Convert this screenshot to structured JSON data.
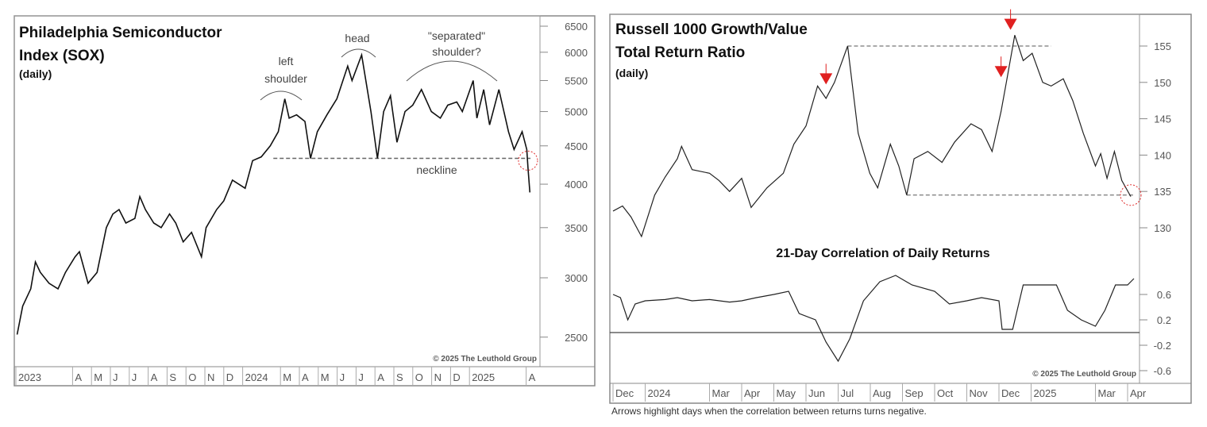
{
  "chart_data": [
    {
      "type": "line",
      "title": "Philadelphia Semiconductor Index (SOX)",
      "title_lines": [
        "Philadelphia Semiconductor",
        "Index (SOX)"
      ],
      "subtitle": "(daily)",
      "y_scale": "log",
      "ylim": [
        2300,
        6700
      ],
      "y_ticks": [
        2500,
        3000,
        3500,
        4000,
        4500,
        5000,
        5500,
        6000,
        6500
      ],
      "x_tick_labels": [
        "2023",
        "A",
        "M",
        "J",
        "J",
        "A",
        "S",
        "O",
        "N",
        "D",
        "2024",
        "M",
        "A",
        "M",
        "J",
        "J",
        "A",
        "S",
        "O",
        "N",
        "D",
        "2025",
        "A"
      ],
      "x_tick_months": [
        "2023-01",
        "2023-04",
        "2023-05",
        "2023-06",
        "2023-07",
        "2023-08",
        "2023-09",
        "2023-10",
        "2023-11",
        "2023-12",
        "2024-01",
        "2024-03",
        "2024-04",
        "2024-05",
        "2024-06",
        "2024-07",
        "2024-08",
        "2024-09",
        "2024-10",
        "2024-11",
        "2024-12",
        "2025-01",
        "2025-04"
      ],
      "grid": false,
      "neckline": {
        "value": 4330,
        "from": "2024-02-20",
        "to": "2025-04-08",
        "label": "neckline"
      },
      "annotations": [
        {
          "text_lines": [
            "left",
            "shoulder"
          ],
          "at": "2024-03-08"
        },
        {
          "text_lines": [
            "head"
          ],
          "at": "2024-07-10"
        },
        {
          "text_lines": [
            "\"separated\"",
            "shoulder?"
          ],
          "at": "2024-12-05"
        }
      ],
      "highlight_circle": {
        "date": "2025-04-04",
        "value": 4300,
        "color": "#e03030"
      },
      "copyright": "© 2025 The Leuthold Group",
      "series": [
        {
          "color": "#111111",
          "points": [
            [
              "2023-01-03",
              2520
            ],
            [
              "2023-01-12",
              2750
            ],
            [
              "2023-01-25",
              2900
            ],
            [
              "2023-02-02",
              3150
            ],
            [
              "2023-02-10",
              3050
            ],
            [
              "2023-02-24",
              2950
            ],
            [
              "2023-03-08",
              2900
            ],
            [
              "2023-03-20",
              3050
            ],
            [
              "2023-04-05",
              3200
            ],
            [
              "2023-04-12",
              3250
            ],
            [
              "2023-04-26",
              2950
            ],
            [
              "2023-05-10",
              3050
            ],
            [
              "2023-05-25",
              3500
            ],
            [
              "2023-06-05",
              3650
            ],
            [
              "2023-06-15",
              3700
            ],
            [
              "2023-06-26",
              3550
            ],
            [
              "2023-07-10",
              3600
            ],
            [
              "2023-07-18",
              3850
            ],
            [
              "2023-07-27",
              3700
            ],
            [
              "2023-08-10",
              3550
            ],
            [
              "2023-08-22",
              3500
            ],
            [
              "2023-09-05",
              3650
            ],
            [
              "2023-09-15",
              3550
            ],
            [
              "2023-09-27",
              3350
            ],
            [
              "2023-10-10",
              3450
            ],
            [
              "2023-10-26",
              3200
            ],
            [
              "2023-11-03",
              3500
            ],
            [
              "2023-11-20",
              3700
            ],
            [
              "2023-12-01",
              3800
            ],
            [
              "2023-12-15",
              4050
            ],
            [
              "2024-01-05",
              3950
            ],
            [
              "2024-01-17",
              4300
            ],
            [
              "2024-01-31",
              4350
            ],
            [
              "2024-02-15",
              4500
            ],
            [
              "2024-02-28",
              4700
            ],
            [
              "2024-03-08",
              5200
            ],
            [
              "2024-03-15",
              4900
            ],
            [
              "2024-03-27",
              4950
            ],
            [
              "2024-04-10",
              4850
            ],
            [
              "2024-04-19",
              4330
            ],
            [
              "2024-04-30",
              4700
            ],
            [
              "2024-05-15",
              4950
            ],
            [
              "2024-05-31",
              5200
            ],
            [
              "2024-06-18",
              5750
            ],
            [
              "2024-06-25",
              5500
            ],
            [
              "2024-07-10",
              5950
            ],
            [
              "2024-07-25",
              5000
            ],
            [
              "2024-08-05",
              4330
            ],
            [
              "2024-08-15",
              5000
            ],
            [
              "2024-08-26",
              5250
            ],
            [
              "2024-09-06",
              4550
            ],
            [
              "2024-09-19",
              5000
            ],
            [
              "2024-10-01",
              5100
            ],
            [
              "2024-10-15",
              5350
            ],
            [
              "2024-10-31",
              5000
            ],
            [
              "2024-11-15",
              4900
            ],
            [
              "2024-11-27",
              5100
            ],
            [
              "2024-12-11",
              5150
            ],
            [
              "2024-12-20",
              5000
            ],
            [
              "2025-01-07",
              5500
            ],
            [
              "2025-01-13",
              4900
            ],
            [
              "2025-01-24",
              5350
            ],
            [
              "2025-02-03",
              4800
            ],
            [
              "2025-02-18",
              5350
            ],
            [
              "2025-03-03",
              4700
            ],
            [
              "2025-03-12",
              4450
            ],
            [
              "2025-03-25",
              4700
            ],
            [
              "2025-04-02",
              4450
            ],
            [
              "2025-04-04",
              4200
            ],
            [
              "2025-04-07",
              3900
            ]
          ]
        }
      ]
    },
    {
      "type": "line",
      "title": "Russell 1000 Growth/Value Total Return Ratio",
      "title_lines": [
        "Russell 1000 Growth/Value",
        "Total Return Ratio"
      ],
      "subtitle": "(daily)",
      "ylim": [
        126,
        159
      ],
      "y_ticks": [
        130,
        135,
        140,
        145,
        150,
        155
      ],
      "x_tick_labels": [
        "Dec",
        "2024",
        "Mar",
        "Apr",
        "May",
        "Jun",
        "Jul",
        "Aug",
        "Sep",
        "Oct",
        "Nov",
        "Dec",
        "2025",
        "Mar",
        "Apr"
      ],
      "x_tick_months": [
        "2023-12",
        "2024-01",
        "2024-03",
        "2024-04",
        "2024-05",
        "2024-06",
        "2024-07",
        "2024-08",
        "2024-09",
        "2024-10",
        "2024-11",
        "2024-12",
        "2025-01",
        "2025-03",
        "2025-04"
      ],
      "grid": false,
      "reference_lines": [
        {
          "value": 155,
          "from": "2024-07-10",
          "to": "2025-01-20"
        },
        {
          "value": 134.5,
          "from": "2024-09-05",
          "to": "2025-04-08"
        }
      ],
      "arrows": [
        {
          "date": "2024-06-20",
          "value": 149.5,
          "color": "#e02020"
        },
        {
          "date": "2024-12-03",
          "value": 150.5,
          "color": "#e02020"
        },
        {
          "date": "2024-12-12",
          "value": 157,
          "color": "#e02020"
        }
      ],
      "highlight_circle": {
        "date": "2025-04-04",
        "value": 134.5,
        "color": "#e03030"
      },
      "series": [
        {
          "color": "#222222",
          "points": [
            [
              "2023-12-01",
              132.3
            ],
            [
              "2023-12-10",
              133
            ],
            [
              "2023-12-18",
              131.5
            ],
            [
              "2023-12-28",
              128.8
            ],
            [
              "2024-01-10",
              134.5
            ],
            [
              "2024-01-20",
              137
            ],
            [
              "2024-02-01",
              139.5
            ],
            [
              "2024-02-05",
              141.2
            ],
            [
              "2024-02-15",
              138
            ],
            [
              "2024-03-01",
              137.5
            ],
            [
              "2024-03-10",
              136.5
            ],
            [
              "2024-03-20",
              135
            ],
            [
              "2024-04-01",
              136.8
            ],
            [
              "2024-04-10",
              132.8
            ],
            [
              "2024-04-25",
              135.5
            ],
            [
              "2024-05-10",
              137.5
            ],
            [
              "2024-05-20",
              141.5
            ],
            [
              "2024-06-01",
              144
            ],
            [
              "2024-06-12",
              149.5
            ],
            [
              "2024-06-20",
              147.8
            ],
            [
              "2024-06-28",
              150
            ],
            [
              "2024-07-10",
              155
            ],
            [
              "2024-07-20",
              143
            ],
            [
              "2024-07-31",
              137.5
            ],
            [
              "2024-08-08",
              135.5
            ],
            [
              "2024-08-20",
              141.5
            ],
            [
              "2024-08-28",
              138.5
            ],
            [
              "2024-09-05",
              134.5
            ],
            [
              "2024-09-12",
              139.5
            ],
            [
              "2024-09-25",
              140.5
            ],
            [
              "2024-10-08",
              139
            ],
            [
              "2024-10-20",
              141.8
            ],
            [
              "2024-11-05",
              144.3
            ],
            [
              "2024-11-15",
              143.5
            ],
            [
              "2024-11-25",
              140.5
            ],
            [
              "2024-12-03",
              146
            ],
            [
              "2024-12-08",
              150
            ],
            [
              "2024-12-16",
              156.5
            ],
            [
              "2024-12-24",
              153
            ],
            [
              "2025-01-02",
              154
            ],
            [
              "2025-01-12",
              150
            ],
            [
              "2025-01-20",
              149.5
            ],
            [
              "2025-02-01",
              150.5
            ],
            [
              "2025-02-10",
              147.5
            ],
            [
              "2025-02-20",
              143
            ],
            [
              "2025-03-01",
              138.5
            ],
            [
              "2025-03-06",
              140.2
            ],
            [
              "2025-03-12",
              136.8
            ],
            [
              "2025-03-19",
              140.5
            ],
            [
              "2025-03-26",
              136.5
            ],
            [
              "2025-04-04",
              134.3
            ]
          ]
        }
      ]
    },
    {
      "type": "line",
      "title": "21-Day Correlation of Daily Returns",
      "ylim": [
        -0.65,
        1.0
      ],
      "y_ticks": [
        -0.6,
        -0.2,
        0.2,
        0.6
      ],
      "zero_line": true,
      "copyright": "© 2025 The Leuthold Group",
      "series": [
        {
          "color": "#222222",
          "points": [
            [
              "2023-12-01",
              0.6
            ],
            [
              "2023-12-08",
              0.55
            ],
            [
              "2023-12-15",
              0.2
            ],
            [
              "2023-12-22",
              0.45
            ],
            [
              "2024-01-01",
              0.5
            ],
            [
              "2024-01-20",
              0.52
            ],
            [
              "2024-02-01",
              0.55
            ],
            [
              "2024-02-15",
              0.5
            ],
            [
              "2024-03-01",
              0.52
            ],
            [
              "2024-03-20",
              0.48
            ],
            [
              "2024-04-01",
              0.5
            ],
            [
              "2024-04-15",
              0.55
            ],
            [
              "2024-05-01",
              0.6
            ],
            [
              "2024-05-15",
              0.65
            ],
            [
              "2024-05-25",
              0.3
            ],
            [
              "2024-06-10",
              0.2
            ],
            [
              "2024-06-20",
              -0.15
            ],
            [
              "2024-07-01",
              -0.45
            ],
            [
              "2024-07-12",
              -0.1
            ],
            [
              "2024-07-25",
              0.5
            ],
            [
              "2024-08-10",
              0.8
            ],
            [
              "2024-08-25",
              0.9
            ],
            [
              "2024-09-10",
              0.75
            ],
            [
              "2024-10-01",
              0.65
            ],
            [
              "2024-10-15",
              0.45
            ],
            [
              "2024-11-01",
              0.5
            ],
            [
              "2024-11-15",
              0.55
            ],
            [
              "2024-12-01",
              0.5
            ],
            [
              "2024-12-04",
              0.05
            ],
            [
              "2024-12-14",
              0.05
            ],
            [
              "2024-12-24",
              0.75
            ],
            [
              "2025-01-10",
              0.75
            ],
            [
              "2025-01-25",
              0.75
            ],
            [
              "2025-02-05",
              0.35
            ],
            [
              "2025-02-18",
              0.2
            ],
            [
              "2025-03-01",
              0.1
            ],
            [
              "2025-03-10",
              0.35
            ],
            [
              "2025-03-20",
              0.75
            ],
            [
              "2025-04-01",
              0.75
            ],
            [
              "2025-04-07",
              0.85
            ]
          ]
        }
      ]
    }
  ],
  "caption": "Arrows highlight days when the correlation between returns turns negative."
}
